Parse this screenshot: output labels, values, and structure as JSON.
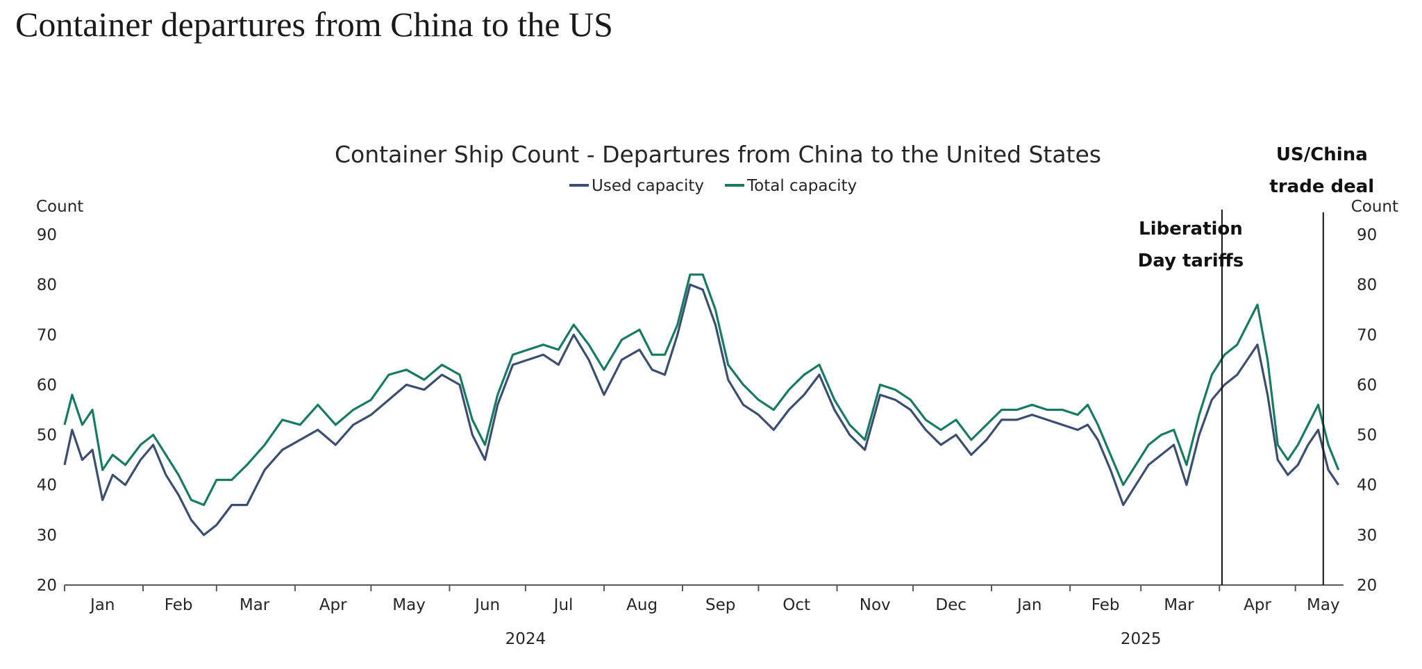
{
  "page": {
    "title": "Container departures from China to the US"
  },
  "chart_data": {
    "type": "line",
    "title": "Container Ship Count - Departures from China to the United States",
    "ylabel_left": "Count",
    "ylabel_right": "Count",
    "ylim": [
      20,
      90
    ],
    "yticks": [
      20,
      30,
      40,
      50,
      60,
      70,
      80,
      90
    ],
    "x_range": [
      "2024-01-01",
      "2025-05-20"
    ],
    "month_labels": [
      {
        "label": "Jan",
        "date": "2024-01-16"
      },
      {
        "label": "Feb",
        "date": "2024-02-15"
      },
      {
        "label": "Mar",
        "date": "2024-03-16"
      },
      {
        "label": "Apr",
        "date": "2024-04-16"
      },
      {
        "label": "May",
        "date": "2024-05-16"
      },
      {
        "label": "Jun",
        "date": "2024-06-16"
      },
      {
        "label": "Jul",
        "date": "2024-07-16"
      },
      {
        "label": "Aug",
        "date": "2024-08-16"
      },
      {
        "label": "Sep",
        "date": "2024-09-16"
      },
      {
        "label": "Oct",
        "date": "2024-10-16"
      },
      {
        "label": "Nov",
        "date": "2024-11-16"
      },
      {
        "label": "Dec",
        "date": "2024-12-16"
      },
      {
        "label": "Jan",
        "date": "2025-01-16"
      },
      {
        "label": "Feb",
        "date": "2025-02-15"
      },
      {
        "label": "Mar",
        "date": "2025-03-16"
      },
      {
        "label": "Apr",
        "date": "2025-04-16"
      },
      {
        "label": "May",
        "date": "2025-05-12"
      }
    ],
    "year_labels": [
      {
        "label": "2024",
        "date": "2024-07-01"
      },
      {
        "label": "2025",
        "date": "2025-03-01"
      }
    ],
    "series": [
      {
        "name": "Used capacity",
        "color": "#3b4e72",
        "x": [
          "2024-01-01",
          "2024-01-04",
          "2024-01-08",
          "2024-01-12",
          "2024-01-16",
          "2024-01-20",
          "2024-01-25",
          "2024-01-31",
          "2024-02-05",
          "2024-02-10",
          "2024-02-15",
          "2024-02-20",
          "2024-02-25",
          "2024-03-01",
          "2024-03-07",
          "2024-03-13",
          "2024-03-20",
          "2024-03-27",
          "2024-04-03",
          "2024-04-10",
          "2024-04-17",
          "2024-04-24",
          "2024-05-01",
          "2024-05-08",
          "2024-05-15",
          "2024-05-22",
          "2024-05-29",
          "2024-06-05",
          "2024-06-10",
          "2024-06-15",
          "2024-06-20",
          "2024-06-26",
          "2024-07-02",
          "2024-07-08",
          "2024-07-14",
          "2024-07-20",
          "2024-07-26",
          "2024-08-01",
          "2024-08-08",
          "2024-08-15",
          "2024-08-20",
          "2024-08-25",
          "2024-08-30",
          "2024-09-04",
          "2024-09-09",
          "2024-09-14",
          "2024-09-19",
          "2024-09-25",
          "2024-10-01",
          "2024-10-07",
          "2024-10-13",
          "2024-10-19",
          "2024-10-25",
          "2024-10-31",
          "2024-11-06",
          "2024-11-12",
          "2024-11-18",
          "2024-11-24",
          "2024-11-30",
          "2024-12-06",
          "2024-12-12",
          "2024-12-18",
          "2024-12-24",
          "2024-12-30",
          "2025-01-05",
          "2025-01-11",
          "2025-01-17",
          "2025-01-23",
          "2025-01-29",
          "2025-02-04",
          "2025-02-08",
          "2025-02-12",
          "2025-02-17",
          "2025-02-22",
          "2025-02-27",
          "2025-03-04",
          "2025-03-09",
          "2025-03-14",
          "2025-03-19",
          "2025-03-24",
          "2025-03-29",
          "2025-04-03",
          "2025-04-08",
          "2025-04-12",
          "2025-04-16",
          "2025-04-20",
          "2025-04-24",
          "2025-04-28",
          "2025-05-02",
          "2025-05-06",
          "2025-05-10",
          "2025-05-14",
          "2025-05-18"
        ],
        "values": [
          44,
          51,
          45,
          47,
          37,
          42,
          40,
          45,
          48,
          42,
          38,
          33,
          30,
          32,
          36,
          36,
          43,
          47,
          49,
          51,
          48,
          52,
          54,
          57,
          60,
          59,
          62,
          60,
          50,
          45,
          56,
          64,
          65,
          66,
          64,
          70,
          65,
          58,
          65,
          67,
          63,
          62,
          70,
          80,
          79,
          72,
          61,
          56,
          54,
          51,
          55,
          58,
          62,
          55,
          50,
          47,
          58,
          57,
          55,
          51,
          48,
          50,
          46,
          49,
          53,
          53,
          54,
          53,
          52,
          51,
          52,
          49,
          43,
          36,
          40,
          44,
          46,
          48,
          40,
          50,
          57,
          60,
          62,
          65,
          68,
          58,
          45,
          42,
          44,
          48,
          51,
          43,
          40
        ]
      },
      {
        "name": "Total capacity",
        "color": "#177b63",
        "x": [
          "2024-01-01",
          "2024-01-04",
          "2024-01-08",
          "2024-01-12",
          "2024-01-16",
          "2024-01-20",
          "2024-01-25",
          "2024-01-31",
          "2024-02-05",
          "2024-02-10",
          "2024-02-15",
          "2024-02-20",
          "2024-02-25",
          "2024-03-01",
          "2024-03-07",
          "2024-03-13",
          "2024-03-20",
          "2024-03-27",
          "2024-04-03",
          "2024-04-10",
          "2024-04-17",
          "2024-04-24",
          "2024-05-01",
          "2024-05-08",
          "2024-05-15",
          "2024-05-22",
          "2024-05-29",
          "2024-06-05",
          "2024-06-10",
          "2024-06-15",
          "2024-06-20",
          "2024-06-26",
          "2024-07-02",
          "2024-07-08",
          "2024-07-14",
          "2024-07-20",
          "2024-07-26",
          "2024-08-01",
          "2024-08-08",
          "2024-08-15",
          "2024-08-20",
          "2024-08-25",
          "2024-08-30",
          "2024-09-04",
          "2024-09-09",
          "2024-09-14",
          "2024-09-19",
          "2024-09-25",
          "2024-10-01",
          "2024-10-07",
          "2024-10-13",
          "2024-10-19",
          "2024-10-25",
          "2024-10-31",
          "2024-11-06",
          "2024-11-12",
          "2024-11-18",
          "2024-11-24",
          "2024-11-30",
          "2024-12-06",
          "2024-12-12",
          "2024-12-18",
          "2024-12-24",
          "2024-12-30",
          "2025-01-05",
          "2025-01-11",
          "2025-01-17",
          "2025-01-23",
          "2025-01-29",
          "2025-02-04",
          "2025-02-08",
          "2025-02-12",
          "2025-02-17",
          "2025-02-22",
          "2025-02-27",
          "2025-03-04",
          "2025-03-09",
          "2025-03-14",
          "2025-03-19",
          "2025-03-24",
          "2025-03-29",
          "2025-04-03",
          "2025-04-08",
          "2025-04-12",
          "2025-04-16",
          "2025-04-20",
          "2025-04-24",
          "2025-04-28",
          "2025-05-02",
          "2025-05-06",
          "2025-05-10",
          "2025-05-14",
          "2025-05-18"
        ],
        "values": [
          52,
          58,
          52,
          55,
          43,
          46,
          44,
          48,
          50,
          46,
          42,
          37,
          36,
          41,
          41,
          44,
          48,
          53,
          52,
          56,
          52,
          55,
          57,
          62,
          63,
          61,
          64,
          62,
          53,
          48,
          58,
          66,
          67,
          68,
          67,
          72,
          68,
          63,
          69,
          71,
          66,
          66,
          72,
          82,
          82,
          75,
          64,
          60,
          57,
          55,
          59,
          62,
          64,
          57,
          52,
          49,
          60,
          59,
          57,
          53,
          51,
          53,
          49,
          52,
          55,
          55,
          56,
          55,
          55,
          54,
          56,
          52,
          46,
          40,
          44,
          48,
          50,
          51,
          44,
          54,
          62,
          66,
          68,
          72,
          76,
          65,
          48,
          45,
          48,
          52,
          56,
          48,
          43
        ]
      }
    ],
    "annotations": [
      {
        "lines": [
          "Liberation",
          "Day tariffs"
        ],
        "date": "2025-04-02"
      },
      {
        "lines": [
          "US/China",
          "trade deal"
        ],
        "date": "2025-05-12"
      }
    ]
  }
}
